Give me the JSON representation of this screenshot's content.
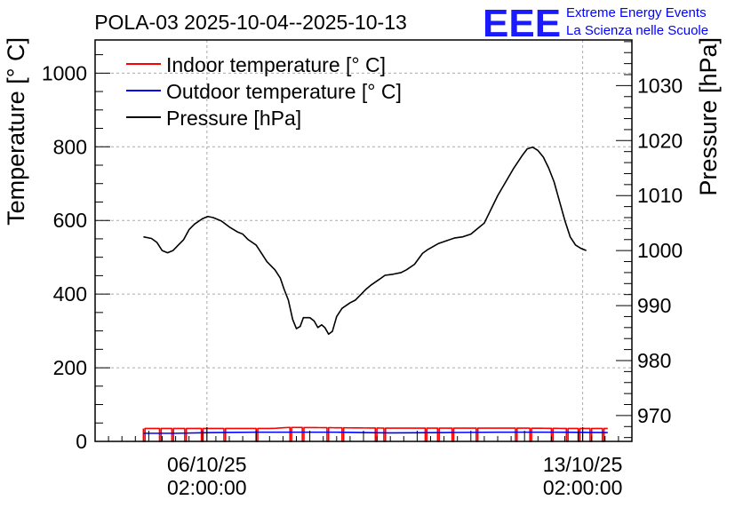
{
  "chart_data": {
    "type": "line",
    "title": "POLA-03 2025-10-04--2025-10-13",
    "ylabel": "Temperature [° C]",
    "y2label": "Pressure [hPa]",
    "ylim": [
      0,
      1090
    ],
    "y2lim": [
      965.3,
      1038.3
    ],
    "yticks": [
      0,
      200,
      400,
      600,
      800,
      1000
    ],
    "y2ticks": [
      970,
      980,
      990,
      1000,
      1010,
      1020,
      1030
    ],
    "grid": true,
    "legend_position": "top-left",
    "x_unit": "days since 2025-10-04 00:00",
    "xlim": [
      0,
      10
    ],
    "xticks": [
      {
        "x": 2.083,
        "label_date": "06/10/25",
        "label_time": "02:00:00"
      },
      {
        "x": 9.083,
        "label_date": "13/10/25",
        "label_time": "02:00:00"
      }
    ],
    "series": [
      {
        "name": "Indoor temperature [° C]",
        "color": "#ff0000",
        "axis": "left",
        "base": 35,
        "dips": [
          [
            0.9,
            0.93
          ],
          [
            1.2,
            1.23
          ],
          [
            1.43,
            1.46
          ],
          [
            1.67,
            1.7
          ],
          [
            1.98,
            2.01
          ],
          [
            2.4,
            2.43
          ],
          [
            3.0,
            3.03
          ],
          [
            3.63,
            3.66
          ],
          [
            3.86,
            3.89
          ],
          [
            4.32,
            4.35
          ],
          [
            4.6,
            4.63
          ],
          [
            5.22,
            5.25
          ],
          [
            5.38,
            5.41
          ],
          [
            6.15,
            6.18
          ],
          [
            6.38,
            6.41
          ],
          [
            6.65,
            6.68
          ],
          [
            7.1,
            7.13
          ],
          [
            7.83,
            7.86
          ],
          [
            8.1,
            8.13
          ],
          [
            8.5,
            8.53
          ],
          [
            8.78,
            8.81
          ],
          [
            9.0,
            9.03
          ],
          [
            9.22,
            9.25
          ],
          [
            9.45,
            9.48
          ]
        ],
        "points": [
          [
            0.9,
            35
          ],
          [
            3.3,
            35
          ],
          [
            3.6,
            38
          ],
          [
            4.5,
            37
          ],
          [
            5.5,
            36
          ],
          [
            7.0,
            36
          ],
          [
            8.0,
            36
          ],
          [
            8.9,
            35
          ],
          [
            9.55,
            35
          ]
        ]
      },
      {
        "name": "Outdoor temperature [° C]",
        "color": "#0000ff",
        "axis": "left",
        "points": [
          [
            0.9,
            22
          ],
          [
            1.5,
            22
          ],
          [
            2.2,
            24
          ],
          [
            3.0,
            25
          ],
          [
            3.8,
            25
          ],
          [
            4.5,
            25
          ],
          [
            5.5,
            23
          ],
          [
            6.5,
            24
          ],
          [
            7.5,
            25
          ],
          [
            8.5,
            25
          ],
          [
            9.55,
            24
          ]
        ]
      },
      {
        "name": "Pressure [hPa]",
        "color": "#000000",
        "axis": "right",
        "points": [
          [
            0.9,
            1002.5
          ],
          [
            1.05,
            1002.2
          ],
          [
            1.15,
            1001.5
          ],
          [
            1.25,
            1000.0
          ],
          [
            1.35,
            999.6
          ],
          [
            1.45,
            1000.0
          ],
          [
            1.55,
            1001.0
          ],
          [
            1.65,
            1002.0
          ],
          [
            1.75,
            1003.8
          ],
          [
            1.85,
            1004.8
          ],
          [
            2.0,
            1005.8
          ],
          [
            2.1,
            1006.2
          ],
          [
            2.2,
            1006.0
          ],
          [
            2.35,
            1005.4
          ],
          [
            2.5,
            1004.3
          ],
          [
            2.65,
            1003.4
          ],
          [
            2.75,
            1003.0
          ],
          [
            2.85,
            1002.0
          ],
          [
            3.0,
            1001.0
          ],
          [
            3.1,
            999.5
          ],
          [
            3.2,
            998.0
          ],
          [
            3.35,
            996.5
          ],
          [
            3.45,
            995.0
          ],
          [
            3.52,
            993.0
          ],
          [
            3.6,
            991.0
          ],
          [
            3.68,
            987.5
          ],
          [
            3.75,
            985.8
          ],
          [
            3.82,
            986.2
          ],
          [
            3.88,
            987.8
          ],
          [
            4.0,
            987.8
          ],
          [
            4.08,
            987.2
          ],
          [
            4.15,
            986.0
          ],
          [
            4.22,
            986.5
          ],
          [
            4.28,
            986.0
          ],
          [
            4.35,
            984.8
          ],
          [
            4.42,
            985.3
          ],
          [
            4.5,
            988.0
          ],
          [
            4.6,
            989.5
          ],
          [
            4.75,
            990.5
          ],
          [
            4.85,
            991.0
          ],
          [
            4.95,
            992.0
          ],
          [
            5.05,
            993.0
          ],
          [
            5.15,
            993.8
          ],
          [
            5.3,
            994.8
          ],
          [
            5.4,
            995.5
          ],
          [
            5.55,
            995.7
          ],
          [
            5.7,
            996.0
          ],
          [
            5.8,
            996.5
          ],
          [
            5.95,
            997.5
          ],
          [
            6.1,
            999.5
          ],
          [
            6.2,
            1000.2
          ],
          [
            6.4,
            1001.3
          ],
          [
            6.55,
            1001.8
          ],
          [
            6.7,
            1002.3
          ],
          [
            6.85,
            1002.5
          ],
          [
            7.0,
            1003.0
          ],
          [
            7.1,
            1003.8
          ],
          [
            7.25,
            1005.0
          ],
          [
            7.35,
            1007.0
          ],
          [
            7.5,
            1010.0
          ],
          [
            7.65,
            1012.5
          ],
          [
            7.8,
            1015.0
          ],
          [
            7.95,
            1017.2
          ],
          [
            8.05,
            1018.5
          ],
          [
            8.15,
            1018.8
          ],
          [
            8.25,
            1018.2
          ],
          [
            8.35,
            1017.0
          ],
          [
            8.45,
            1015.0
          ],
          [
            8.55,
            1012.5
          ],
          [
            8.65,
            1009.0
          ],
          [
            8.75,
            1005.5
          ],
          [
            8.85,
            1002.5
          ],
          [
            8.95,
            1001.0
          ],
          [
            9.05,
            1000.4
          ],
          [
            9.15,
            1000.0
          ]
        ]
      }
    ]
  },
  "logo": {
    "mark": "EEE",
    "line1": "Extreme Energy Events",
    "line2": "La Scienza nelle Scuole",
    "color": "#0000ff"
  }
}
